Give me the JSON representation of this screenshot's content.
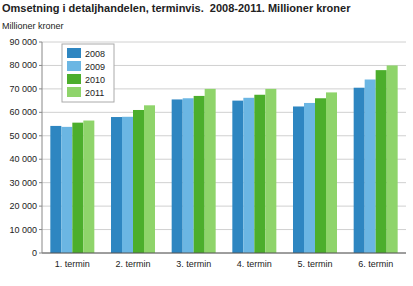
{
  "chart_data": {
    "type": "bar",
    "title": "Omsetning i detaljhandelen, terminvis.  2008-2011. Millioner kroner",
    "y_label": "Millioner kroner",
    "categories": [
      "1. termin",
      "2. termin",
      "3. termin",
      "4. termin",
      "5. termin",
      "6. termin"
    ],
    "series": [
      {
        "name": "2008",
        "color": "#2e86c1",
        "values": [
          54200,
          58000,
          65500,
          65000,
          62500,
          70500
        ]
      },
      {
        "name": "2009",
        "color": "#6bb6e3",
        "values": [
          53800,
          58100,
          66000,
          66200,
          64000,
          74000
        ]
      },
      {
        "name": "2010",
        "color": "#4cae2c",
        "values": [
          55600,
          61000,
          67000,
          67500,
          66000,
          78000
        ]
      },
      {
        "name": "2011",
        "color": "#8fd46b",
        "values": [
          56500,
          63000,
          70000,
          70000,
          68500,
          80000
        ]
      }
    ],
    "ylim": [
      0,
      90000
    ],
    "yticks": [
      0,
      {
        "value": 10000,
        "label": "10 000"
      },
      {
        "value": 20000,
        "label": "20 000"
      },
      {
        "value": 30000,
        "label": "30 000"
      },
      {
        "value": 40000,
        "label": "40 000"
      },
      {
        "value": 50000,
        "label": "50 000"
      },
      {
        "value": 60000,
        "label": "60 000"
      },
      {
        "value": 70000,
        "label": "70 000"
      },
      {
        "value": 80000,
        "label": "80 000"
      },
      {
        "value": 90000,
        "label": "90 000"
      }
    ],
    "grid": true,
    "legend": "top-left"
  }
}
